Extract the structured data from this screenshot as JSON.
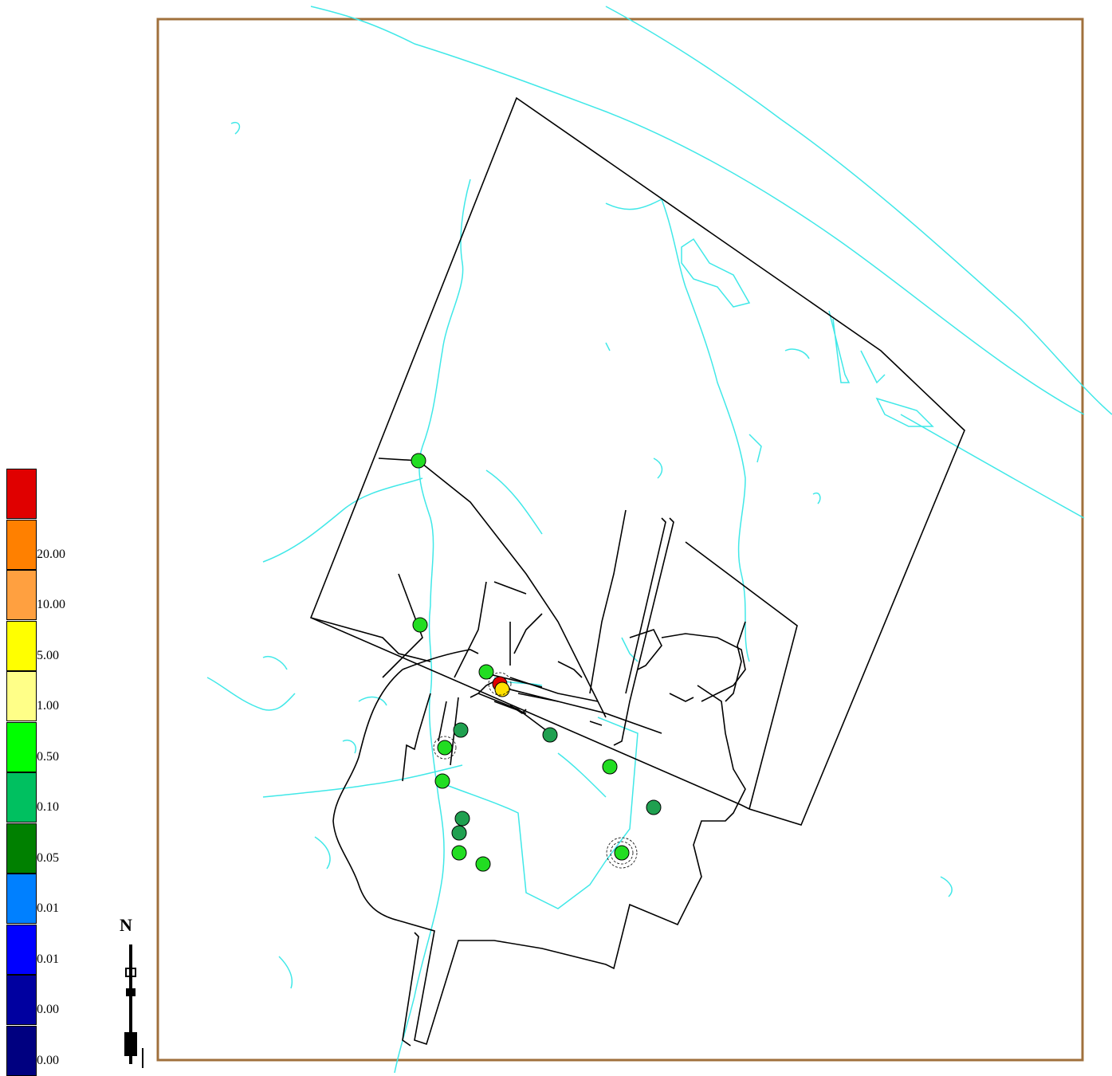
{
  "legend": {
    "classes": [
      {
        "color": "#e00000",
        "label": ""
      },
      {
        "color": "#ff8000",
        "label": "20.00"
      },
      {
        "color": "#ffa040",
        "label": "10.00"
      },
      {
        "color": "#ffff00",
        "label": "5.00"
      },
      {
        "color": "#ffff88",
        "label": "1.00"
      },
      {
        "color": "#00ff00",
        "label": "0.50"
      },
      {
        "color": "#00c060",
        "label": "0.10"
      },
      {
        "color": "#008000",
        "label": "0.05"
      },
      {
        "color": "#0080ff",
        "label": "0.01"
      },
      {
        "color": "#0000ff",
        "label": "0.01"
      },
      {
        "color": "#0000a0",
        "label": "0.00"
      },
      {
        "color": "#000080",
        "label": "0.00"
      }
    ]
  },
  "north_arrow": {
    "letter": "N"
  },
  "colors": {
    "frame": "#a0703c",
    "water": "#40e8e8",
    "roads": "#000000",
    "point_bright_green": "#22dd22",
    "point_dark_green": "#20a050",
    "point_yellow": "#ffe000",
    "point_red": "#e00000"
  }
}
